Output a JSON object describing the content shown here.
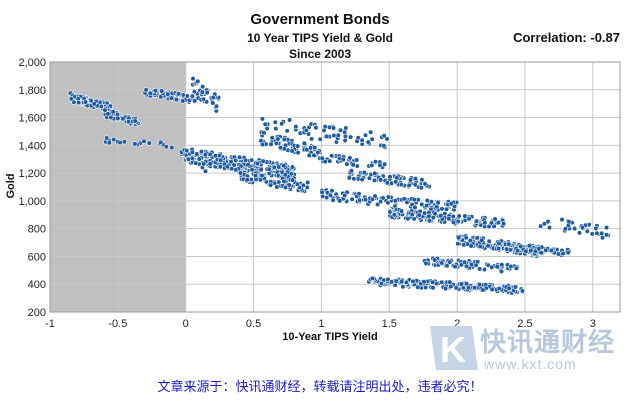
{
  "chart_data": {
    "type": "scatter",
    "title": "Government Bonds",
    "subtitle_lines": [
      "10 Year TIPS Yield & Gold",
      "Since 2003"
    ],
    "annotation": "Correlation: -0.87",
    "xlabel": "10-Year TIPS Yield",
    "ylabel": "Gold",
    "xlim": [
      -1,
      3.2
    ],
    "ylim": [
      200,
      2000
    ],
    "x_ticks": [
      -1,
      -0.5,
      0,
      0.5,
      1,
      1.5,
      2,
      2.5,
      3
    ],
    "x_tick_labels": [
      "-1",
      "-0.5",
      "0",
      "0.5",
      "1",
      "1.5",
      "2",
      "2.5",
      "3"
    ],
    "y_ticks": [
      200,
      400,
      600,
      800,
      1000,
      1200,
      1400,
      1600,
      1800,
      2000
    ],
    "y_tick_labels": [
      "200",
      "400",
      "600",
      "800",
      "1,000",
      "1,200",
      "1,400",
      "1,600",
      "1,800",
      "2,000"
    ],
    "grid": true,
    "shaded_region": {
      "x_from": -1,
      "x_to": 0,
      "color": "#c0c0c0"
    },
    "marker_color": "#1f5b9e",
    "clusters": [
      {
        "x": [
          -0.85,
          -0.55
        ],
        "y": [
          1640,
          1780
        ],
        "n": 80
      },
      {
        "x": [
          -0.6,
          -0.35
        ],
        "y": [
          1540,
          1660
        ],
        "n": 60
      },
      {
        "x": [
          -0.3,
          0.1
        ],
        "y": [
          1700,
          1810
        ],
        "n": 55
      },
      {
        "x": [
          0.05,
          0.25
        ],
        "y": [
          1620,
          1890
        ],
        "n": 35
      },
      {
        "x": [
          -0.65,
          -0.1
        ],
        "y": [
          1380,
          1460
        ],
        "n": 18
      },
      {
        "x": [
          -0.05,
          0.15
        ],
        "y": [
          1200,
          1420
        ],
        "n": 25
      },
      {
        "x": [
          0.0,
          0.8
        ],
        "y": [
          1150,
          1380
        ],
        "n": 260
      },
      {
        "x": [
          0.4,
          0.9
        ],
        "y": [
          1060,
          1220
        ],
        "n": 90
      },
      {
        "x": [
          0.55,
          1.0
        ],
        "y": [
          1300,
          1500
        ],
        "n": 70
      },
      {
        "x": [
          0.55,
          1.5
        ],
        "y": [
          1360,
          1620
        ],
        "n": 60
      },
      {
        "x": [
          1.0,
          1.5
        ],
        "y": [
          1220,
          1340
        ],
        "n": 35
      },
      {
        "x": [
          1.2,
          1.8
        ],
        "y": [
          1080,
          1230
        ],
        "n": 80
      },
      {
        "x": [
          1.0,
          2.0
        ],
        "y": [
          920,
          1080
        ],
        "n": 110
      },
      {
        "x": [
          1.5,
          2.35
        ],
        "y": [
          800,
          950
        ],
        "n": 130
      },
      {
        "x": [
          2.0,
          2.6
        ],
        "y": [
          600,
          760
        ],
        "n": 150
      },
      {
        "x": [
          2.3,
          2.85
        ],
        "y": [
          600,
          700
        ],
        "n": 60
      },
      {
        "x": [
          2.6,
          3.15
        ],
        "y": [
          720,
          900
        ],
        "n": 30
      },
      {
        "x": [
          1.75,
          2.45
        ],
        "y": [
          480,
          600
        ],
        "n": 70
      },
      {
        "x": [
          1.35,
          2.5
        ],
        "y": [
          330,
          450
        ],
        "n": 170
      }
    ]
  },
  "footer_text": "文章来源于：快讯通财经，转载请注明出处，违者必究！",
  "watermark": {
    "text": "快讯通财经",
    "url": "www.kxt.com",
    "logo_letter": "K"
  }
}
